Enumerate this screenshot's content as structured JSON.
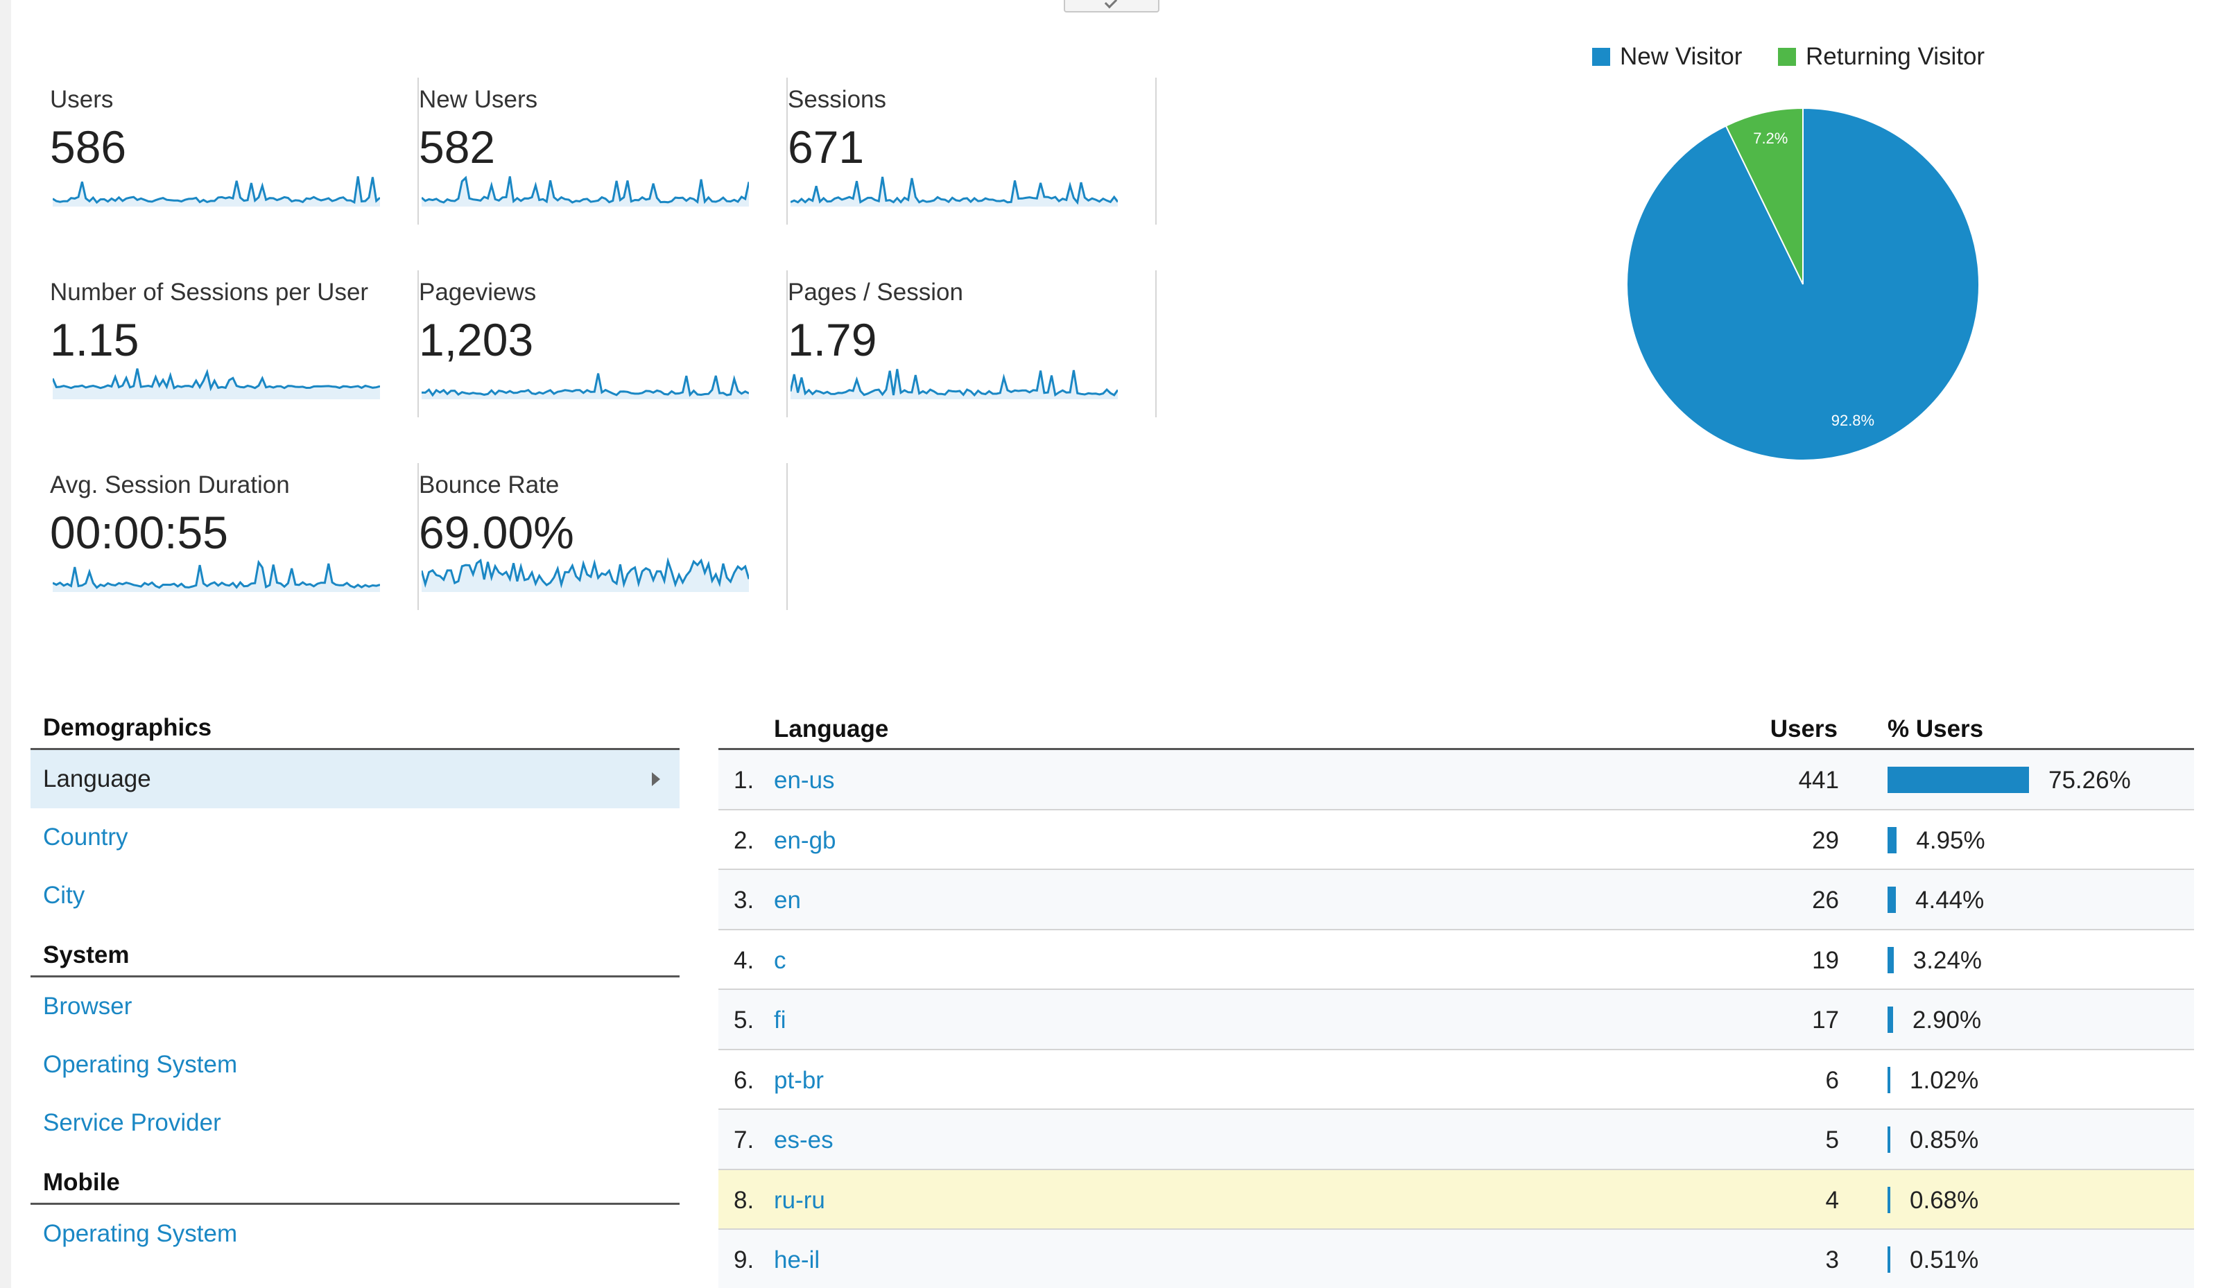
{
  "overview": {
    "metrics": [
      {
        "label": "Users",
        "value": "586"
      },
      {
        "label": "New Users",
        "value": "582"
      },
      {
        "label": "Sessions",
        "value": "671"
      },
      {
        "label": "Number of Sessions per User",
        "value": "1.15"
      },
      {
        "label": "Pageviews",
        "value": "1,203"
      },
      {
        "label": "Pages / Session",
        "value": "1.79"
      },
      {
        "label": "Avg. Session Duration",
        "value": "00:00:55"
      },
      {
        "label": "Bounce Rate",
        "value": "69.00%"
      }
    ]
  },
  "pie": {
    "legend": [
      {
        "label": "New Visitor",
        "color": "#1a8bc8"
      },
      {
        "label": "Returning Visitor",
        "color": "#50b848"
      }
    ],
    "slices": [
      {
        "label": "92.8%",
        "value": 92.8,
        "color": "#1a8bc8"
      },
      {
        "label": "7.2%",
        "value": 7.2,
        "color": "#50b848"
      }
    ]
  },
  "demographics_nav": {
    "sections": [
      {
        "title": "Demographics",
        "items": [
          "Language",
          "Country",
          "City"
        ]
      },
      {
        "title": "System",
        "items": [
          "Browser",
          "Operating System",
          "Service Provider"
        ]
      },
      {
        "title": "Mobile",
        "items": [
          "Operating System"
        ]
      }
    ],
    "active_item": "Language"
  },
  "language_table": {
    "headers": {
      "dimension": "Language",
      "users": "Users",
      "pct_users": "% Users"
    },
    "rows": [
      {
        "rank": "1.",
        "language": "en-us",
        "users": "441",
        "pct": "75.26%",
        "pct_value": 75.26
      },
      {
        "rank": "2.",
        "language": "en-gb",
        "users": "29",
        "pct": "4.95%",
        "pct_value": 4.95
      },
      {
        "rank": "3.",
        "language": "en",
        "users": "26",
        "pct": "4.44%",
        "pct_value": 4.44
      },
      {
        "rank": "4.",
        "language": "c",
        "users": "19",
        "pct": "3.24%",
        "pct_value": 3.24
      },
      {
        "rank": "5.",
        "language": "fi",
        "users": "17",
        "pct": "2.90%",
        "pct_value": 2.9
      },
      {
        "rank": "6.",
        "language": "pt-br",
        "users": "6",
        "pct": "1.02%",
        "pct_value": 1.02
      },
      {
        "rank": "7.",
        "language": "es-es",
        "users": "5",
        "pct": "0.85%",
        "pct_value": 0.85
      },
      {
        "rank": "8.",
        "language": "ru-ru",
        "users": "4",
        "pct": "0.68%",
        "pct_value": 0.68
      },
      {
        "rank": "9.",
        "language": "he-il",
        "users": "3",
        "pct": "0.51%",
        "pct_value": 0.51
      }
    ],
    "highlighted_rank": "8."
  }
}
